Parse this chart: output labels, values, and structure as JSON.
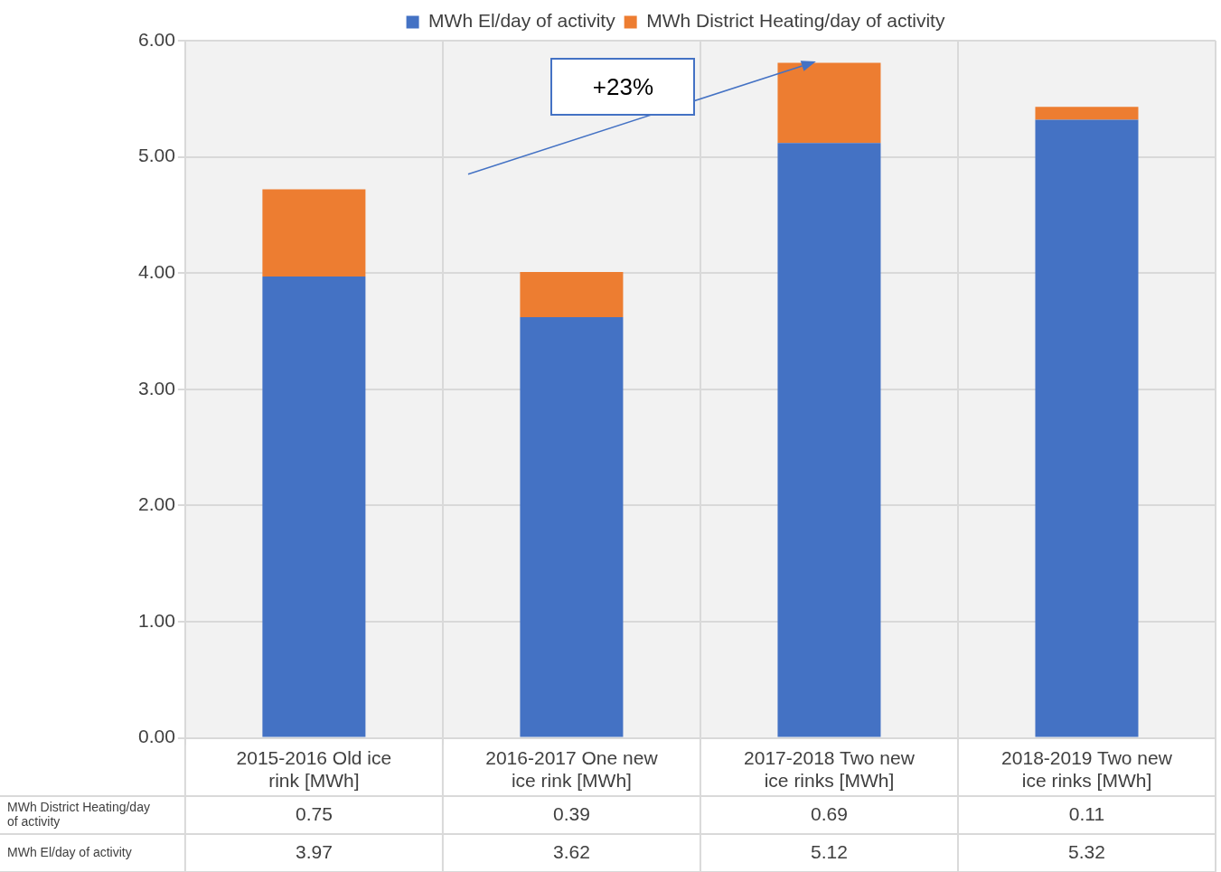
{
  "chart_data": {
    "type": "bar",
    "stacked": true,
    "categories": [
      "2015-2016 Old ice rink [MWh]",
      "2016-2017 One new ice rink [MWh]",
      "2017-2018 Two new ice rinks [MWh]",
      "2018-2019 Two new ice rinks [MWh]"
    ],
    "series": [
      {
        "name": "MWh El/day of activity",
        "color": "#4472c4",
        "values": [
          3.97,
          3.62,
          5.12,
          5.32
        ]
      },
      {
        "name": "MWh District Heating/day of activity",
        "color": "#ed7d31",
        "values": [
          0.75,
          0.39,
          0.69,
          0.11
        ]
      }
    ],
    "ylim": [
      0,
      6
    ],
    "yticks": [
      {
        "value": 0,
        "label": "0.00"
      },
      {
        "value": 1,
        "label": "1.00"
      },
      {
        "value": 2,
        "label": "2.00"
      },
      {
        "value": 3,
        "label": "3.00"
      },
      {
        "value": 4,
        "label": "4.00"
      },
      {
        "value": 5,
        "label": "5.00"
      },
      {
        "value": 6,
        "label": "6.00"
      }
    ],
    "grid": true,
    "legend": "top",
    "data_labels": true,
    "annotations": [
      "+23%"
    ]
  }
}
